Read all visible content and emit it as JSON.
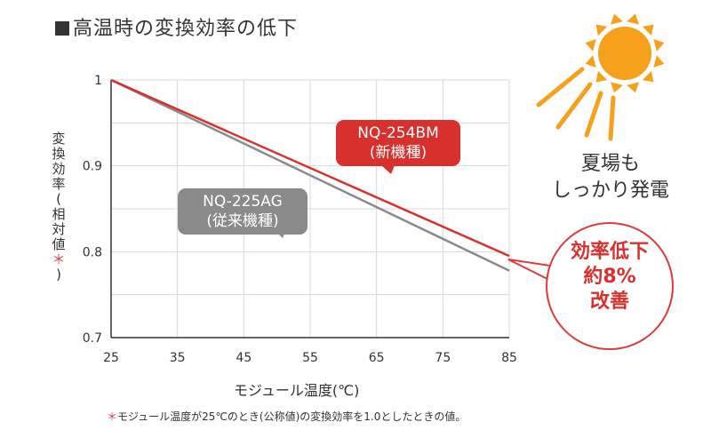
{
  "title": "高温時の変換効率の低下",
  "footnote": {
    "mark": "＊",
    "text": "モジュール温度が25℃のとき(公称値)の変換効率を1.0としたときの値。"
  },
  "side_text": [
    "夏場も",
    "しっかり発電"
  ],
  "badge_text": [
    "効率低下",
    "約8%",
    "改善"
  ],
  "colors": {
    "red": "#d8302c",
    "gray": "#8a8a8a",
    "sun": "#f5a11c"
  },
  "chart_data": {
    "type": "line",
    "ylabel_chars": [
      "変",
      "換",
      "効",
      "率",
      "(",
      "相",
      "対",
      "値",
      "＊",
      ")"
    ],
    "xlabel": "モジュール温度(℃)",
    "xlim": [
      25,
      85
    ],
    "ylim": [
      0.7,
      1.0
    ],
    "x_ticks": [
      "25",
      "35",
      "45",
      "55",
      "65",
      "75",
      "85"
    ],
    "y_ticks": [
      "0.7",
      "0.8",
      "0.9",
      "1"
    ],
    "grid": true,
    "series": [
      {
        "name": "NQ-254BM",
        "label_line2": "(新機種)",
        "color": "#d8302c",
        "x": [
          25,
          85
        ],
        "y": [
          1.0,
          0.795
        ]
      },
      {
        "name": "NQ-225AG",
        "label_line2": "(従来機種)",
        "color": "#8a8a8a",
        "x": [
          25,
          85
        ],
        "y": [
          1.0,
          0.778
        ]
      }
    ]
  }
}
